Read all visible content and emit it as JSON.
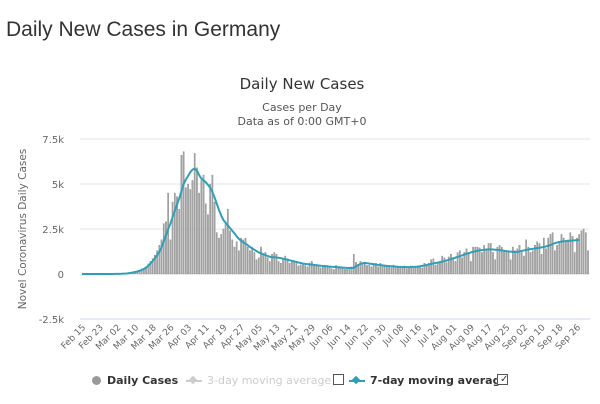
{
  "page": {
    "title": "Daily New Cases in Germany"
  },
  "legend": {
    "items": [
      {
        "label": "Daily Cases",
        "enabled": true,
        "icon": "circle-marker-icon"
      },
      {
        "label": "3-day moving average",
        "enabled": false,
        "icon": "line-diamond-marker-icon",
        "checkbox_checked": false
      },
      {
        "label": "7-day moving average",
        "enabled": true,
        "icon": "line-diamond-marker-icon",
        "checkbox_checked": true
      }
    ],
    "checkmark": "✓"
  },
  "colors": {
    "bars": "#a6a6a6",
    "bar_outline": "#7f7f7f",
    "line7": "#2f9fb7",
    "grid": "#e6e6e6",
    "text": "#666666",
    "title": "#333333"
  },
  "chart_data": {
    "type": "bar",
    "title": "Daily New Cases",
    "subtitle_lines": [
      "Cases per Day",
      "Data as of 0:00 GMT+0"
    ],
    "xlabel": "",
    "ylabel": "Novel Coronavirus Daily Cases",
    "ylim": [
      -2500,
      7500
    ],
    "yticks": [
      -2500,
      0,
      2500,
      5000,
      7500
    ],
    "ytick_labels": [
      "-2.5k",
      "0",
      "2.5k",
      "5k",
      "7.5k"
    ],
    "grid": true,
    "legend_position": "bottom",
    "start_date": "Feb 15",
    "xtick_labels": [
      "Feb 15",
      "Feb 23",
      "Mar 02",
      "Mar 10",
      "Mar 18",
      "Mar 26",
      "Apr 03",
      "Apr 11",
      "Apr 19",
      "Apr 27",
      "May 05",
      "May 13",
      "May 21",
      "May 29",
      "Jun 06",
      "Jun 14",
      "Jun 22",
      "Jun 30",
      "Jul 08",
      "Jul 16",
      "Jul 24",
      "Aug 01",
      "Aug 09",
      "Aug 17",
      "Aug 25",
      "Sep 02",
      "Sep 10",
      "Sep 18",
      "Sep 26"
    ],
    "xtick_step_days": 8,
    "series": [
      {
        "name": "Daily Cases",
        "type": "bar",
        "values": [
          0,
          0,
          0,
          0,
          0,
          0,
          0,
          0,
          0,
          0,
          0,
          0,
          0,
          0,
          0,
          5,
          10,
          15,
          20,
          25,
          40,
          60,
          80,
          120,
          150,
          130,
          190,
          290,
          250,
          380,
          560,
          700,
          850,
          1050,
          1300,
          1600,
          1900,
          2800,
          2900,
          4500,
          1900,
          4000,
          4500,
          4300,
          3600,
          6600,
          6800,
          4800,
          5000,
          4700,
          5200,
          6700,
          5900,
          4500,
          5200,
          5500,
          3900,
          3300,
          5000,
          5500,
          4000,
          2300,
          2000,
          2200,
          2500,
          2900,
          3600,
          2400,
          1900,
          1500,
          1800,
          1300,
          2000,
          1900,
          2000,
          1500,
          1300,
          1500,
          1200,
          800,
          900,
          1500,
          1100,
          1200,
          900,
          700,
          1100,
          1200,
          1100,
          700,
          600,
          800,
          1000,
          850,
          600,
          650,
          700,
          650,
          450,
          500,
          550,
          480,
          400,
          620,
          700,
          550,
          440,
          420,
          350,
          400,
          500,
          480,
          420,
          300,
          250,
          480,
          320,
          340,
          350,
          260,
          280,
          350,
          400,
          1100,
          650,
          500,
          700,
          620,
          550,
          480,
          500,
          400,
          580,
          600,
          400,
          600,
          500,
          430,
          480,
          440,
          350,
          500,
          420,
          380,
          420,
          380,
          450,
          300,
          330,
          450,
          420,
          380,
          420,
          400,
          340,
          600,
          500,
          600,
          800,
          850,
          500,
          640,
          700,
          1000,
          900,
          640,
          950,
          1100,
          900,
          700,
          1200,
          1300,
          900,
          1200,
          1400,
          1100,
          700,
          1500,
          1500,
          1500,
          1450,
          1200,
          1600,
          1400,
          1700,
          1700,
          1200,
          800,
          1500,
          1600,
          1500,
          1300,
          1200,
          1300,
          800,
          1500,
          1300,
          1400,
          1600,
          1200,
          1000,
          1900,
          1500,
          1200,
          1300,
          1600,
          1800,
          1700,
          1100,
          2000,
          1400,
          2000,
          2200,
          2300,
          1300,
          1600,
          1800,
          2200,
          2000,
          1800,
          1900,
          2300,
          2100,
          1200,
          2000,
          2200,
          2400,
          2500,
          2300,
          1300
        ]
      },
      {
        "name": "7-day moving average",
        "type": "line",
        "values": [
          0,
          0,
          0,
          0,
          0,
          0,
          0,
          0,
          0,
          0,
          0,
          0,
          0,
          1,
          2,
          4,
          6,
          10,
          14,
          20,
          28,
          40,
          60,
          85,
          110,
          140,
          175,
          220,
          280,
          360,
          460,
          580,
          720,
          880,
          1050,
          1250,
          1480,
          1800,
          2150,
          2500,
          2800,
          3150,
          3500,
          3850,
          4200,
          4600,
          5000,
          5250,
          5450,
          5650,
          5800,
          5850,
          5750,
          5500,
          5300,
          5200,
          5100,
          4950,
          4800,
          4550,
          4250,
          3900,
          3550,
          3250,
          3000,
          2850,
          2700,
          2550,
          2400,
          2250,
          2100,
          1950,
          1850,
          1750,
          1680,
          1600,
          1500,
          1420,
          1350,
          1270,
          1200,
          1150,
          1100,
          1050,
          1000,
          960,
          930,
          930,
          920,
          900,
          880,
          850,
          820,
          790,
          760,
          730,
          700,
          670,
          640,
          610,
          580,
          560,
          545,
          530,
          520,
          505,
          490,
          475,
          460,
          445,
          430,
          420,
          410,
          400,
          395,
          385,
          375,
          365,
          355,
          345,
          340,
          335,
          335,
          340,
          420,
          500,
          560,
          600,
          620,
          600,
          580,
          560,
          540,
          520,
          505,
          495,
          480,
          465,
          450,
          440,
          430,
          420,
          410,
          400,
          395,
          390,
          385,
          385,
          385,
          390,
          395,
          400,
          410,
          430,
          450,
          475,
          500,
          530,
          560,
          590,
          610,
          630,
          660,
          690,
          720,
          750,
          790,
          830,
          870,
          910,
          950,
          990,
          1030,
          1080,
          1120,
          1160,
          1200,
          1230,
          1260,
          1290,
          1310,
          1330,
          1350,
          1360,
          1370,
          1370,
          1360,
          1350,
          1340,
          1330,
          1310,
          1290,
          1270,
          1250,
          1240,
          1230,
          1220,
          1230,
          1250,
          1280,
          1310,
          1340,
          1360,
          1380,
          1400,
          1420,
          1440,
          1460,
          1480,
          1500,
          1530,
          1570,
          1610,
          1660,
          1710,
          1750,
          1780,
          1800,
          1820,
          1830,
          1840,
          1850,
          1860,
          1870,
          1880,
          1880
        ]
      }
    ]
  }
}
